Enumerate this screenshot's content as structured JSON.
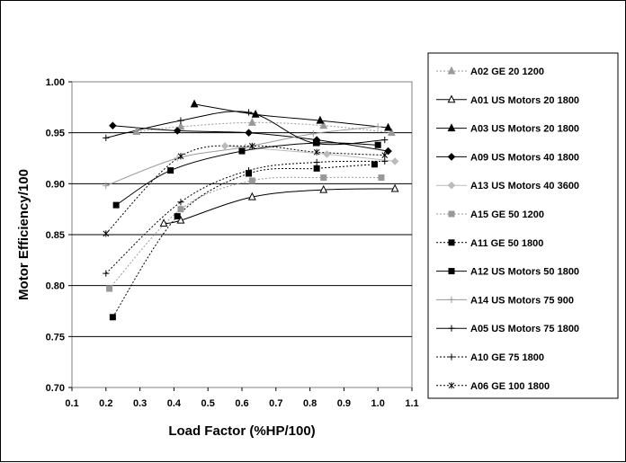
{
  "chart_data": {
    "type": "line",
    "title": "",
    "xlabel": "Load Factor (%HP/100)",
    "ylabel": "Motor Efficiency/100",
    "xlim": [
      0.1,
      1.1
    ],
    "ylim": [
      0.7,
      1.0
    ],
    "xticks": [
      "0.1",
      "0.2",
      "0.3",
      "0.4",
      "0.5",
      "0.6",
      "0.7",
      "0.8",
      "0.9",
      "1.0",
      "1.1"
    ],
    "yticks": [
      "0.70",
      "0.75",
      "0.80",
      "0.85",
      "0.90",
      "0.95",
      "1.00"
    ],
    "grid": "horizontal",
    "legend_position": "right",
    "series": [
      {
        "name": "A02 GE 20 1200",
        "marker": "triangle",
        "fill": "#999999",
        "line": "#999999",
        "dash": "2,2",
        "points": [
          [
            0.29,
            0.951
          ],
          [
            0.42,
            0.956
          ],
          [
            0.63,
            0.96
          ],
          [
            0.84,
            0.957
          ],
          [
            1.04,
            0.95
          ]
        ]
      },
      {
        "name": "A01 US Motors 20 1800",
        "marker": "triangle",
        "fill": "#ffffff",
        "line": "#000000",
        "dash": "",
        "points": [
          [
            0.37,
            0.861
          ],
          [
            0.42,
            0.864
          ],
          [
            0.63,
            0.887
          ],
          [
            0.84,
            0.894
          ],
          [
            1.05,
            0.895
          ]
        ]
      },
      {
        "name": "A03 US Motors 20 1800",
        "marker": "triangle",
        "fill": "#000000",
        "line": "#000000",
        "dash": "",
        "points": [
          [
            0.46,
            0.978
          ],
          [
            0.64,
            0.968
          ],
          [
            0.83,
            0.962
          ],
          [
            1.03,
            0.955
          ]
        ]
      },
      {
        "name": "A09 US Motors 40 1800",
        "marker": "diamond",
        "fill": "#000000",
        "line": "#000000",
        "dash": "",
        "points": [
          [
            0.22,
            0.957
          ],
          [
            0.41,
            0.952
          ],
          [
            0.62,
            0.95
          ],
          [
            0.82,
            0.943
          ],
          [
            1.03,
            0.932
          ]
        ]
      },
      {
        "name": "A13 US Motors 40 3600",
        "marker": "diamond",
        "fill": "#bbbbbb",
        "line": "#bbbbbb",
        "dash": "",
        "points": [
          [
            0.55,
            0.937
          ],
          [
            0.85,
            0.929
          ],
          [
            1.05,
            0.922
          ]
        ]
      },
      {
        "name": "A15 GE 50 1200",
        "marker": "square",
        "fill": "#999999",
        "line": "#999999",
        "dash": "2,2",
        "points": [
          [
            0.21,
            0.797
          ],
          [
            0.42,
            0.875
          ],
          [
            0.63,
            0.903
          ],
          [
            0.84,
            0.906
          ],
          [
            1.01,
            0.906
          ]
        ]
      },
      {
        "name": "A11 GE 50 1800",
        "marker": "square",
        "fill": "#000000",
        "line": "#000000",
        "dash": "2,2",
        "points": [
          [
            0.22,
            0.769
          ],
          [
            0.41,
            0.868
          ],
          [
            0.62,
            0.91
          ],
          [
            0.82,
            0.915
          ],
          [
            0.99,
            0.919
          ]
        ]
      },
      {
        "name": "A12 US Motors 50 1800",
        "marker": "square",
        "fill": "#000000",
        "line": "#000000",
        "dash": "",
        "points": [
          [
            0.23,
            0.879
          ],
          [
            0.39,
            0.913
          ],
          [
            0.6,
            0.932
          ],
          [
            0.82,
            0.94
          ],
          [
            1.0,
            0.938
          ]
        ]
      },
      {
        "name": "A14 US Motors 75 900",
        "marker": "plus",
        "fill": "#999999",
        "line": "#999999",
        "dash": "",
        "points": [
          [
            0.2,
            0.898
          ],
          [
            0.41,
            0.925
          ],
          [
            0.61,
            0.936
          ],
          [
            0.81,
            0.949
          ],
          [
            1.0,
            0.956
          ]
        ]
      },
      {
        "name": "A05 US Motors 75 1800",
        "marker": "plus",
        "fill": "#000000",
        "line": "#000000",
        "dash": "",
        "points": [
          [
            0.2,
            0.945
          ],
          [
            0.42,
            0.962
          ],
          [
            0.62,
            0.97
          ],
          [
            0.81,
            0.94
          ],
          [
            1.02,
            0.943
          ]
        ]
      },
      {
        "name": "A10 GE 75 1800",
        "marker": "plus",
        "fill": "#000000",
        "line": "#000000",
        "dash": "2,2",
        "points": [
          [
            0.2,
            0.812
          ],
          [
            0.42,
            0.882
          ],
          [
            0.62,
            0.913
          ],
          [
            0.82,
            0.921
          ],
          [
            1.02,
            0.922
          ]
        ]
      },
      {
        "name": "A06 GE 100 1800",
        "marker": "star",
        "fill": "#000000",
        "line": "#000000",
        "dash": "2,2",
        "points": [
          [
            0.2,
            0.851
          ],
          [
            0.42,
            0.927
          ],
          [
            0.63,
            0.937
          ],
          [
            0.82,
            0.931
          ],
          [
            1.02,
            0.928
          ]
        ]
      }
    ]
  }
}
